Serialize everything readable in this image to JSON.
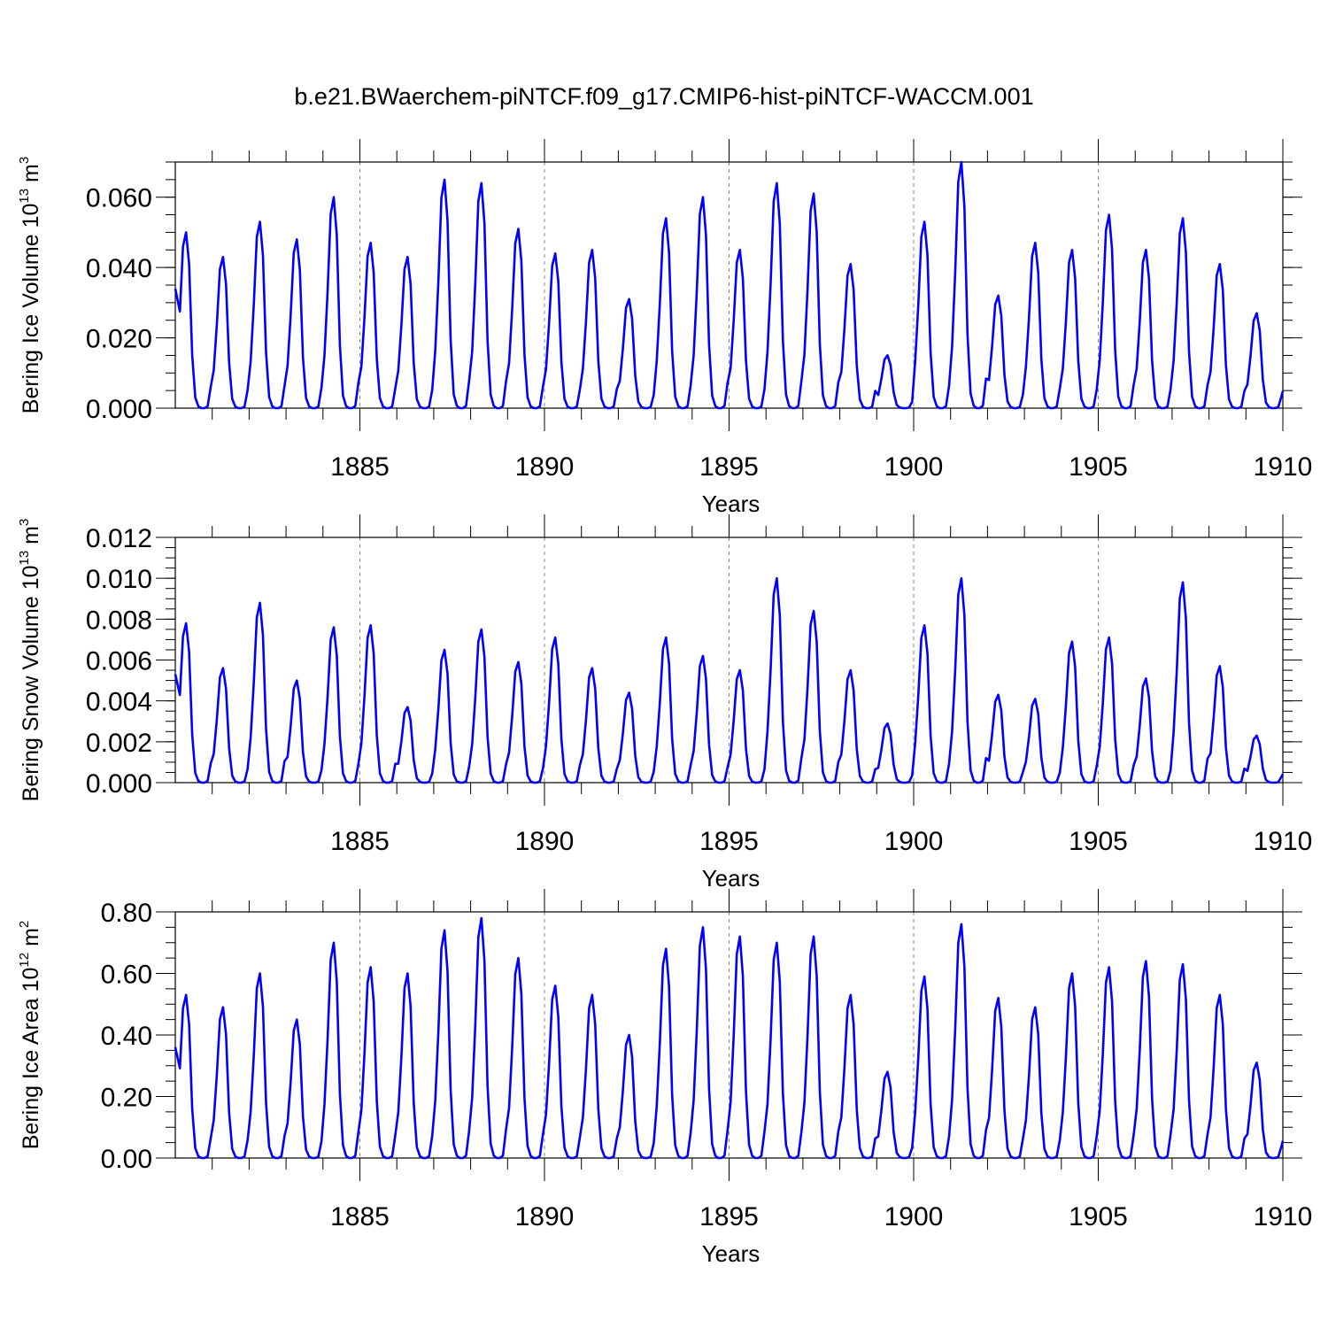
{
  "title": "b.e21.BWaerchem-piNTCF.f09_g17.CMIP6-hist-piNTCF-WACCM.001",
  "colors": {
    "series": "#0000ff",
    "axis": "#000000",
    "grid": "#888888"
  },
  "chart_data": [
    {
      "type": "line",
      "title": "b.e21.BWaerchem-piNTCF.f09_g17.CMIP6-hist-piNTCF-WACCM.001",
      "ylabel": {
        "text": "Bering Ice Volume 10",
        "exp": "13",
        "unit": " m",
        "unit_exp": "3"
      },
      "xlabel": "Years",
      "xlim": [
        1880,
        1910
      ],
      "ylim": [
        0,
        0.07
      ],
      "xticks": [
        1885,
        1890,
        1895,
        1900,
        1905,
        1910
      ],
      "xtick_labels": [
        "1885",
        "1890",
        "1895",
        "1900",
        "1905",
        "1910"
      ],
      "yticks": [
        0,
        0.02,
        0.04,
        0.06
      ],
      "ytick_labels": [
        "0.000",
        "0.020",
        "0.040",
        "0.060"
      ],
      "vlines": [
        1885,
        1890,
        1895,
        1900,
        1905
      ],
      "series": [
        {
          "name": "Bering Ice Volume",
          "peaks": [
            0.05,
            0.043,
            0.053,
            0.048,
            0.06,
            0.047,
            0.043,
            0.065,
            0.064,
            0.051,
            0.044,
            0.045,
            0.031,
            0.054,
            0.06,
            0.045,
            0.064,
            0.061,
            0.041,
            0.015,
            0.053,
            0.07,
            0.032,
            0.047,
            0.045,
            0.055,
            0.045,
            0.054,
            0.041,
            0.027
          ]
        }
      ]
    },
    {
      "type": "line",
      "ylabel": {
        "text": "Bering Snow Volume 10",
        "exp": "13",
        "unit": " m",
        "unit_exp": "3"
      },
      "xlabel": "Years",
      "xlim": [
        1880,
        1910
      ],
      "ylim": [
        0,
        0.012
      ],
      "xticks": [
        1885,
        1890,
        1895,
        1900,
        1905,
        1910
      ],
      "xtick_labels": [
        "1885",
        "1890",
        "1895",
        "1900",
        "1905",
        "1910"
      ],
      "yticks": [
        0,
        0.002,
        0.004,
        0.006,
        0.008,
        0.01,
        0.012
      ],
      "ytick_labels": [
        "0.000",
        "0.002",
        "0.004",
        "0.006",
        "0.008",
        "0.010",
        "0.012"
      ],
      "vlines": [
        1885,
        1890,
        1895,
        1900,
        1905
      ],
      "series": [
        {
          "name": "Bering Snow Volume",
          "peaks": [
            0.0078,
            0.0056,
            0.0088,
            0.005,
            0.0076,
            0.0077,
            0.0037,
            0.0065,
            0.0075,
            0.0059,
            0.0071,
            0.0056,
            0.0044,
            0.0071,
            0.0062,
            0.0055,
            0.01,
            0.0084,
            0.0055,
            0.0029,
            0.0077,
            0.01,
            0.0043,
            0.0041,
            0.0069,
            0.0071,
            0.0051,
            0.0098,
            0.0057,
            0.0023
          ]
        }
      ]
    },
    {
      "type": "line",
      "ylabel": {
        "text": "Bering Ice Area 10",
        "exp": "12",
        "unit": " m",
        "unit_exp": "2"
      },
      "xlabel": "Years",
      "xlim": [
        1880,
        1910
      ],
      "ylim": [
        0,
        0.8
      ],
      "xticks": [
        1885,
        1890,
        1895,
        1900,
        1905,
        1910
      ],
      "xtick_labels": [
        "1885",
        "1890",
        "1895",
        "1900",
        "1905",
        "1910"
      ],
      "yticks": [
        0,
        0.2,
        0.4,
        0.6,
        0.8
      ],
      "ytick_labels": [
        "0.00",
        "0.20",
        "0.40",
        "0.60",
        "0.80"
      ],
      "vlines": [
        1885,
        1890,
        1895,
        1900,
        1905
      ],
      "series": [
        {
          "name": "Bering Ice Area",
          "peaks": [
            0.53,
            0.49,
            0.6,
            0.45,
            0.7,
            0.62,
            0.6,
            0.74,
            0.78,
            0.65,
            0.56,
            0.53,
            0.4,
            0.68,
            0.75,
            0.72,
            0.7,
            0.72,
            0.53,
            0.28,
            0.59,
            0.76,
            0.52,
            0.49,
            0.6,
            0.62,
            0.64,
            0.63,
            0.53,
            0.31
          ]
        }
      ]
    }
  ]
}
